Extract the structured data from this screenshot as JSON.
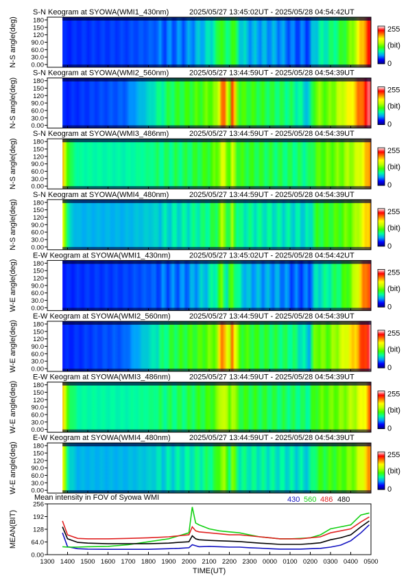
{
  "keograms": [
    {
      "title": "S-N Keogram at SYOWA(WMI1_430nm)",
      "time_range": "2025/05/27 13:45:02UT - 2025/05/28 04:54:42UT",
      "ylabel": "N-S angle(deg)",
      "kind": "430"
    },
    {
      "title": "S-N Keogram at SYOWA(WMI2_560nm)",
      "time_range": "2025/05/27 13:44:59UT - 2025/05/28 04:54:39UT",
      "ylabel": "N-S angle(deg)",
      "kind": "560"
    },
    {
      "title": "S-N Keogram at SYOWA(WMI3_486nm)",
      "time_range": "2025/05/27 13:44:59UT - 2025/05/28 04:54:39UT",
      "ylabel": "N-S angle(deg)",
      "kind": "486"
    },
    {
      "title": "S-N Keogram at SYOWA(WMI4_480nm)",
      "time_range": "2025/05/27 13:44:59UT - 2025/05/28 04:54:39UT",
      "ylabel": "N-S angle(deg)",
      "kind": "480"
    },
    {
      "title": "E-W Keogram at SYOWA(WMI1_430nm)",
      "time_range": "2025/05/27 13:45:02UT - 2025/05/28 04:54:42UT",
      "ylabel": "W-E angle(deg)",
      "kind": "430"
    },
    {
      "title": "E-W Keogram at SYOWA(WMI2_560nm)",
      "time_range": "2025/05/27 13:44:59UT - 2025/05/28 04:54:39UT",
      "ylabel": "W-E angle(deg)",
      "kind": "560"
    },
    {
      "title": "E-W Keogram at SYOWA(WMI3_486nm)",
      "time_range": "2025/05/27 13:44:59UT - 2025/05/28 04:54:39UT",
      "ylabel": "W-E angle(deg)",
      "kind": "486"
    },
    {
      "title": "E-W Keogram at SYOWA(WMI4_480nm)",
      "time_range": "2025/05/27 13:44:59UT - 2025/05/28 04:54:39UT",
      "ylabel": "W-E angle(deg)",
      "kind": "480"
    }
  ],
  "keogram_yticks": [
    "180",
    "150",
    "120",
    "90.0",
    "60.0",
    "30.0",
    "0.00"
  ],
  "keogram_ylim": [
    0,
    180
  ],
  "colorbar": {
    "max_label": "255",
    "unit_label": "(bit)",
    "min_label": "0",
    "range": [
      0,
      255
    ]
  },
  "colormap": [
    "#000080",
    "#0000ff",
    "#00a0ff",
    "#00ffa0",
    "#40ff00",
    "#c0ff00",
    "#ffff00",
    "#ff8000",
    "#ff0000",
    "#ffffff"
  ],
  "chart_data": {
    "type": "line",
    "title": "Mean intensity in FOV of Syowa WMI",
    "xlabel": "TIME(UT)",
    "ylabel": "MEAN(BIT)",
    "ylim": [
      0,
      256
    ],
    "yticks": [
      "256",
      "192",
      "128",
      "64.0",
      "0.00"
    ],
    "x_ticks": [
      "1300",
      "1400",
      "1500",
      "1600",
      "1700",
      "1800",
      "1900",
      "2000",
      "2100",
      "2200",
      "2300",
      "0000",
      "0100",
      "0200",
      "0300",
      "0400",
      "0500"
    ],
    "x": [
      "13:45",
      "14:00",
      "14:30",
      "15:00",
      "16:00",
      "17:00",
      "18:00",
      "19:00",
      "19:30",
      "20:00",
      "20:10",
      "20:20",
      "20:30",
      "21:00",
      "21:30",
      "22:00",
      "22:30",
      "23:00",
      "23:30",
      "00:00",
      "00:30",
      "01:00",
      "01:30",
      "02:00",
      "02:30",
      "03:00",
      "03:30",
      "04:00",
      "04:30",
      "04:55"
    ],
    "series": [
      {
        "name": "430",
        "color": "#1010c0",
        "values": [
          110,
          40,
          30,
          28,
          27,
          27,
          27,
          30,
          32,
          35,
          50,
          45,
          40,
          42,
          40,
          38,
          38,
          35,
          33,
          30,
          28,
          28,
          28,
          30,
          32,
          38,
          48,
          70,
          110,
          150
        ]
      },
      {
        "name": "560",
        "color": "#10d010",
        "values": [
          40,
          38,
          38,
          40,
          42,
          50,
          65,
          80,
          95,
          110,
          240,
          160,
          150,
          130,
          120,
          115,
          110,
          100,
          90,
          85,
          80,
          80,
          82,
          85,
          100,
          130,
          140,
          150,
          200,
          210
        ]
      },
      {
        "name": "486",
        "color": "#e02020",
        "values": [
          170,
          100,
          82,
          80,
          80,
          82,
          85,
          90,
          95,
          100,
          140,
          120,
          115,
          110,
          105,
          100,
          100,
          95,
          90,
          85,
          80,
          80,
          80,
          85,
          90,
          110,
          120,
          130,
          165,
          190
        ]
      },
      {
        "name": "480",
        "color": "#000000",
        "values": [
          140,
          80,
          62,
          58,
          55,
          55,
          55,
          58,
          62,
          65,
          95,
          80,
          75,
          72,
          70,
          68,
          66,
          62,
          58,
          55,
          52,
          52,
          52,
          55,
          60,
          75,
          85,
          100,
          140,
          170
        ]
      }
    ]
  }
}
